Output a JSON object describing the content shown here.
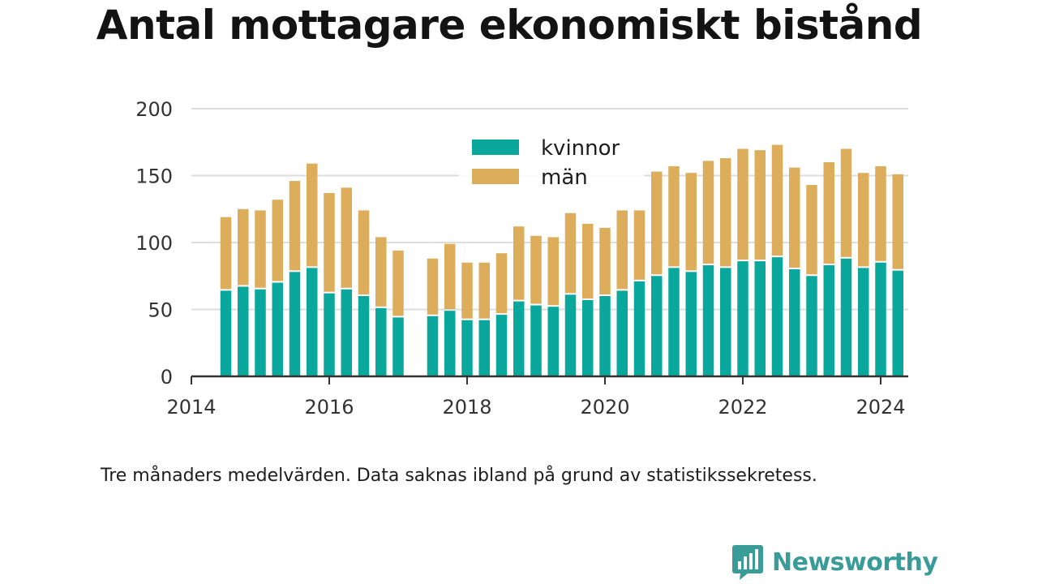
{
  "chart_data": {
    "type": "bar",
    "stacked": true,
    "title": "Antal mottagare ekonomiskt bistånd",
    "note": "Tre månaders medelvärden. Data saknas ibland på grund av statistikssekretess.",
    "xlabel": "",
    "ylabel": "",
    "ylim": [
      0,
      200
    ],
    "yticks": [
      0,
      50,
      100,
      150,
      200
    ],
    "xlim": [
      2014,
      2024.4
    ],
    "xticks": [
      2014,
      2016,
      2018,
      2020,
      2022,
      2024
    ],
    "grid": true,
    "legend_position": "top-center",
    "x": [
      2014.5,
      2014.75,
      2015.0,
      2015.25,
      2015.5,
      2015.75,
      2016.0,
      2016.25,
      2016.5,
      2016.75,
      2017.0,
      2017.5,
      2017.75,
      2018.0,
      2018.25,
      2018.5,
      2018.75,
      2019.0,
      2019.25,
      2019.5,
      2019.75,
      2020.0,
      2020.25,
      2020.5,
      2020.75,
      2021.0,
      2021.25,
      2021.5,
      2021.75,
      2022.0,
      2022.25,
      2022.5,
      2022.75,
      2023.0,
      2023.25,
      2023.5,
      2023.75,
      2024.0,
      2024.25
    ],
    "series": [
      {
        "name": "kvinnor",
        "color": "#0aa89c",
        "values": [
          64,
          67,
          65,
          70,
          78,
          81,
          62,
          65,
          60,
          51,
          44,
          45,
          49,
          42,
          42,
          46,
          56,
          53,
          52,
          61,
          57,
          60,
          64,
          71,
          75,
          81,
          78,
          83,
          81,
          86,
          86,
          89,
          80,
          75,
          83,
          88,
          81,
          85,
          79
        ]
      },
      {
        "name": "män",
        "color": "#dcad5a",
        "values": [
          55,
          58,
          59,
          62,
          68,
          78,
          75,
          76,
          64,
          53,
          50,
          43,
          50,
          43,
          43,
          46,
          56,
          52,
          52,
          61,
          57,
          51,
          60,
          53,
          78,
          76,
          74,
          78,
          82,
          84,
          83,
          84,
          76,
          68,
          77,
          82,
          71,
          72,
          72
        ]
      }
    ]
  },
  "footer": {
    "brand_name": "Newsworthy",
    "brand_color": "#3a9c98",
    "logo_icon": "bar-chart-icon"
  }
}
